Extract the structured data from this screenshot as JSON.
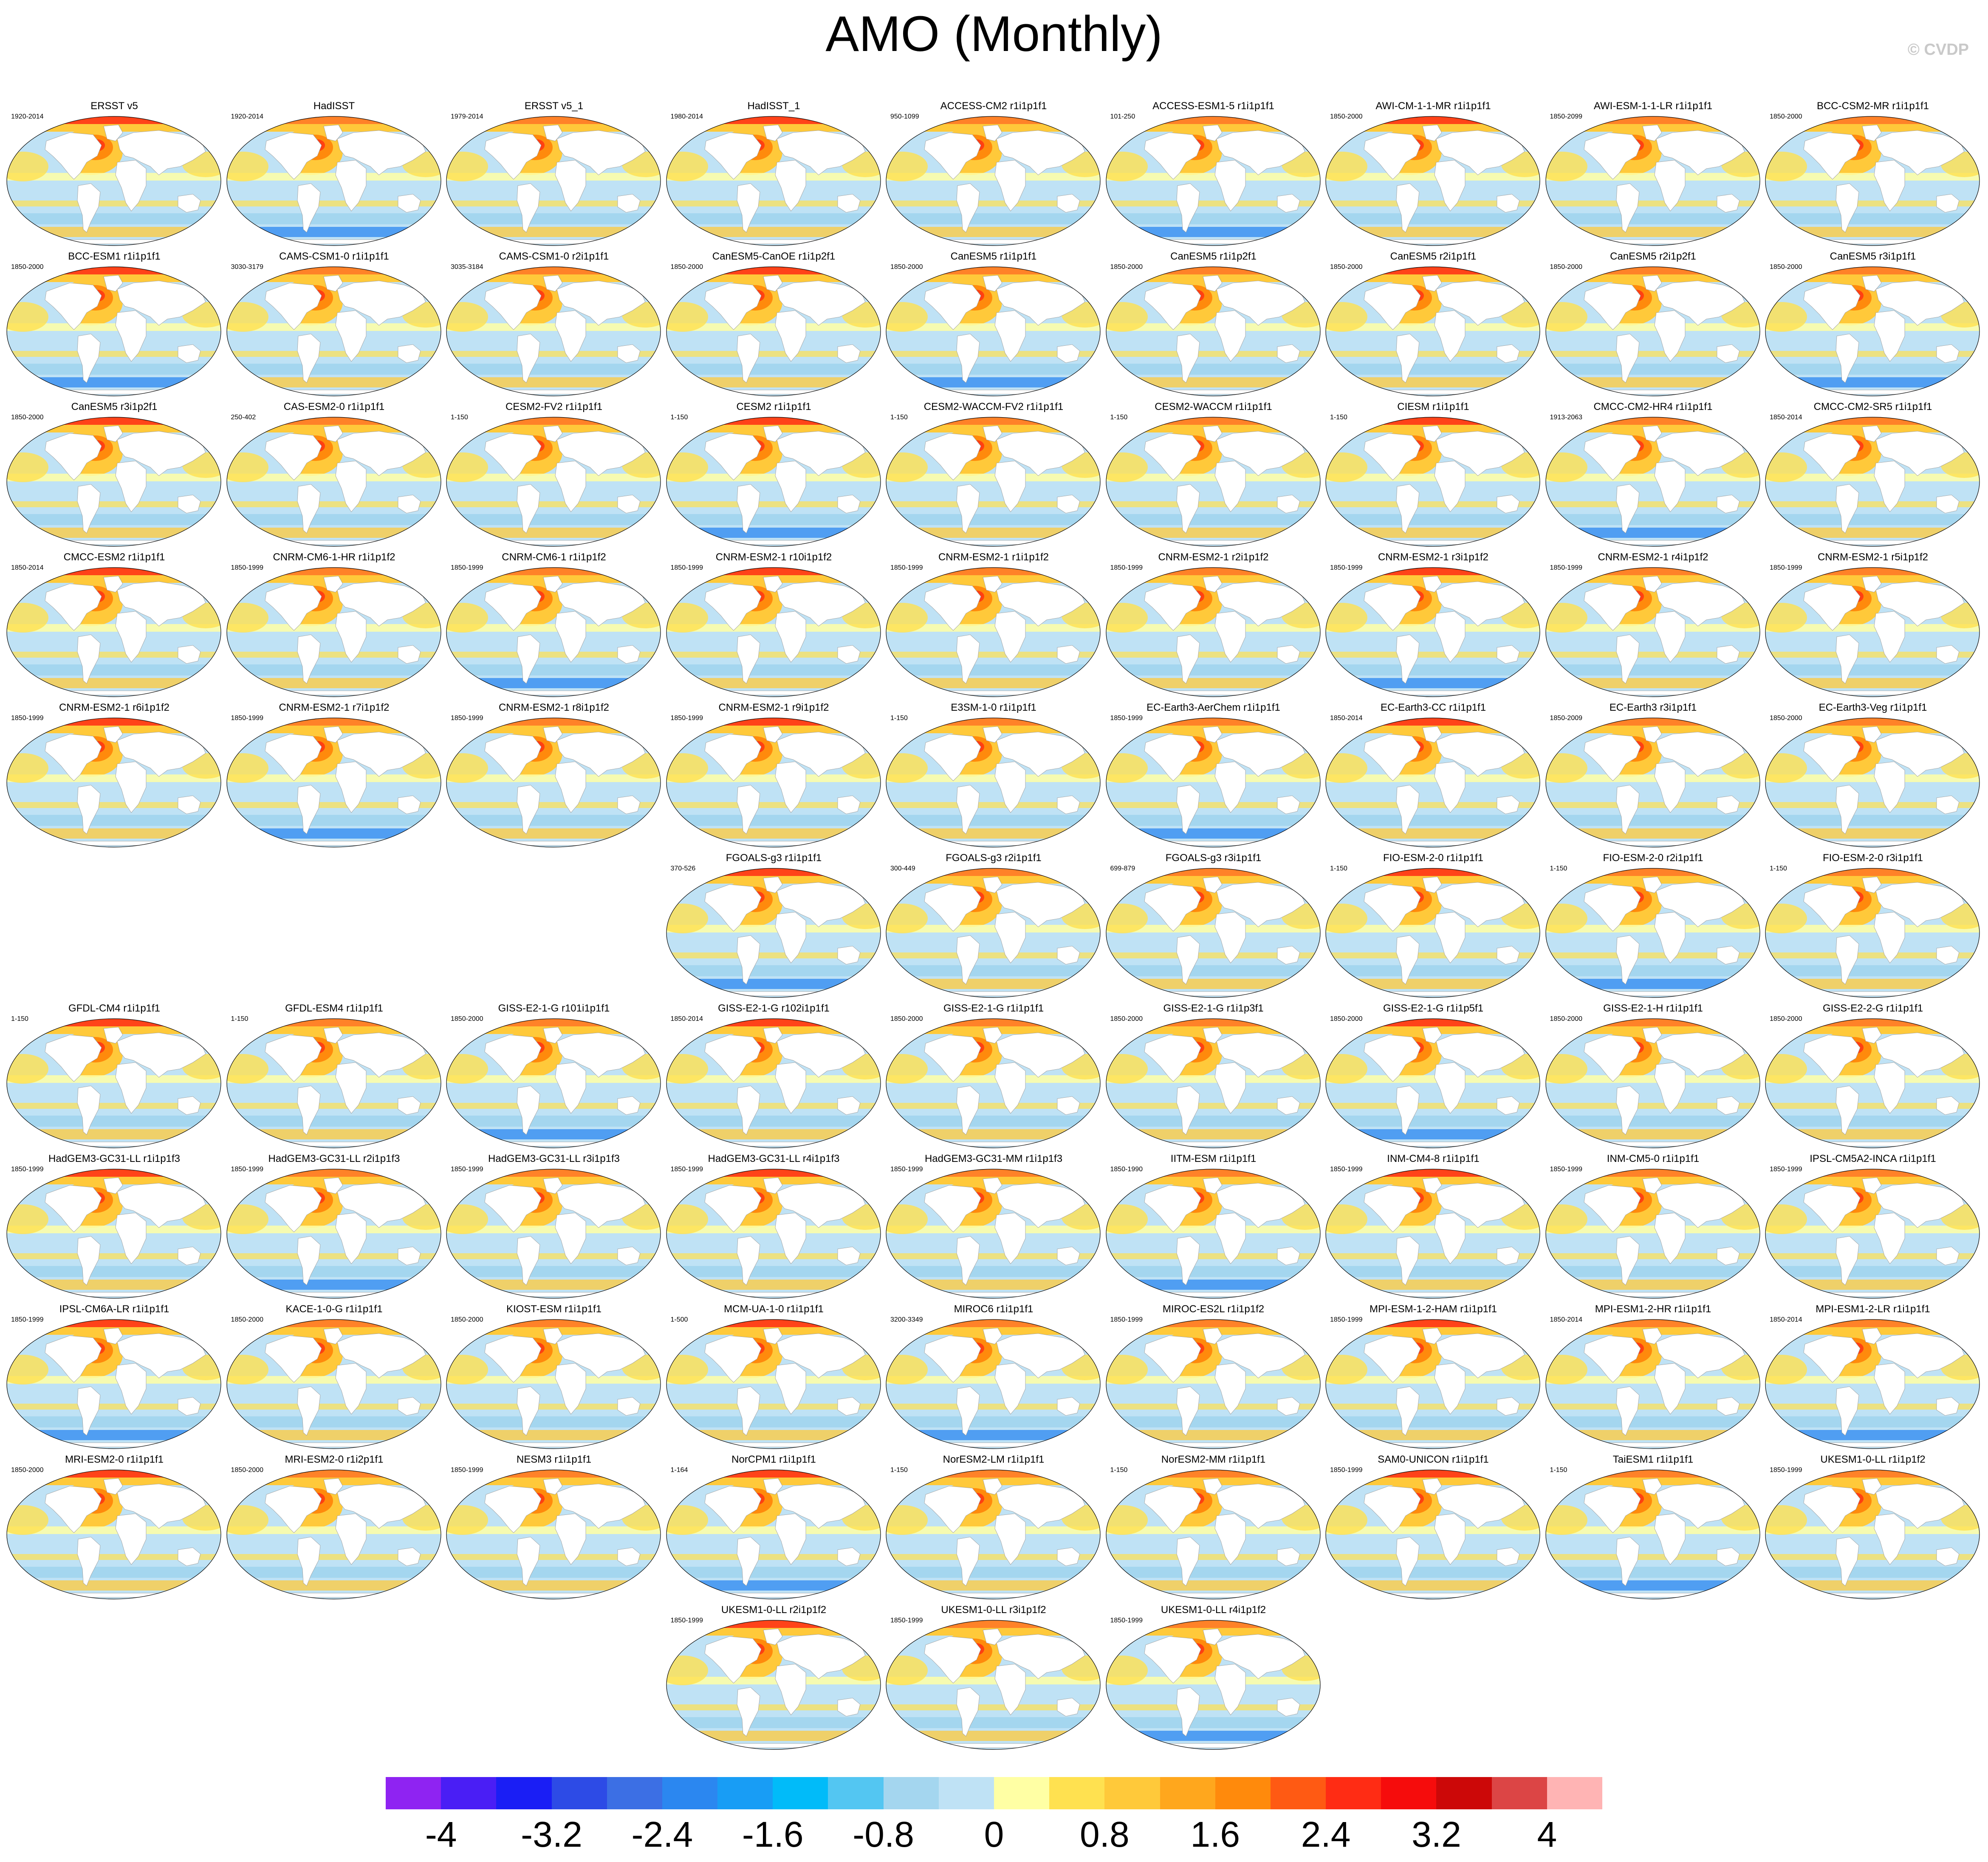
{
  "title": "AMO (Monthly)",
  "watermark": "© CVDP",
  "colorbar": {
    "colors": [
      "#8f23f2",
      "#4a1ef5",
      "#1a1ef5",
      "#2d4be6",
      "#3c6fe4",
      "#2b87f0",
      "#189df5",
      "#01bbf9",
      "#53c6f2",
      "#a4d6ef",
      "#bfe2f5",
      "#ffffa4",
      "#ffe150",
      "#ffc93a",
      "#ffa71d",
      "#ff8a0c",
      "#ff5a13",
      "#ff2c14",
      "#f60c0c",
      "#cc0808",
      "#dc4545",
      "#ffb4b4"
    ],
    "labels": [
      "-4",
      "-3.2",
      "-2.4",
      "-1.6",
      "-0.8",
      "0",
      "0.8",
      "1.6",
      "2.4",
      "3.2",
      "4"
    ]
  },
  "panels": [
    {
      "title": "ERSST v5",
      "years": "1920-2014",
      "col": 0,
      "row": 0
    },
    {
      "title": "HadISST",
      "years": "1920-2014",
      "col": 1,
      "row": 0
    },
    {
      "title": "ERSST v5_1",
      "years": "1979-2014",
      "col": 2,
      "row": 0
    },
    {
      "title": "HadISST_1",
      "years": "1980-2014",
      "col": 3,
      "row": 0
    },
    {
      "title": "ACCESS-CM2 r1i1p1f1",
      "years": "950-1099",
      "col": 4,
      "row": 0
    },
    {
      "title": "ACCESS-ESM1-5 r1i1p1f1",
      "years": "101-250",
      "col": 5,
      "row": 0
    },
    {
      "title": "AWI-CM-1-1-MR r1i1p1f1",
      "years": "1850-2000",
      "col": 6,
      "row": 0
    },
    {
      "title": "AWI-ESM-1-1-LR r1i1p1f1",
      "years": "1850-2099",
      "col": 7,
      "row": 0
    },
    {
      "title": "BCC-CSM2-MR r1i1p1f1",
      "years": "1850-2000",
      "col": 8,
      "row": 0
    },
    {
      "title": "BCC-ESM1 r1i1p1f1",
      "years": "1850-2000",
      "col": 0,
      "row": 1
    },
    {
      "title": "CAMS-CSM1-0 r1i1p1f1",
      "years": "3030-3179",
      "col": 1,
      "row": 1
    },
    {
      "title": "CAMS-CSM1-0 r2i1p1f1",
      "years": "3035-3184",
      "col": 2,
      "row": 1
    },
    {
      "title": "CanESM5-CanOE r1i1p2f1",
      "years": "1850-2000",
      "col": 3,
      "row": 1
    },
    {
      "title": "CanESM5 r1i1p1f1",
      "years": "1850-2000",
      "col": 4,
      "row": 1
    },
    {
      "title": "CanESM5 r1i1p2f1",
      "years": "1850-2000",
      "col": 5,
      "row": 1
    },
    {
      "title": "CanESM5 r2i1p1f1",
      "years": "1850-2000",
      "col": 6,
      "row": 1
    },
    {
      "title": "CanESM5 r2i1p2f1",
      "years": "1850-2000",
      "col": 7,
      "row": 1
    },
    {
      "title": "CanESM5 r3i1p1f1",
      "years": "1850-2000",
      "col": 8,
      "row": 1
    },
    {
      "title": "CanESM5 r3i1p2f1",
      "years": "1850-2000",
      "col": 0,
      "row": 2
    },
    {
      "title": "CAS-ESM2-0 r1i1p1f1",
      "years": "250-402",
      "col": 1,
      "row": 2
    },
    {
      "title": "CESM2-FV2 r1i1p1f1",
      "years": "1-150",
      "col": 2,
      "row": 2
    },
    {
      "title": "CESM2 r1i1p1f1",
      "years": "1-150",
      "col": 3,
      "row": 2
    },
    {
      "title": "CESM2-WACCM-FV2 r1i1p1f1",
      "years": "1-150",
      "col": 4,
      "row": 2
    },
    {
      "title": "CESM2-WACCM r1i1p1f1",
      "years": "1-150",
      "col": 5,
      "row": 2
    },
    {
      "title": "CIESM r1i1p1f1",
      "years": "1-150",
      "col": 6,
      "row": 2
    },
    {
      "title": "CMCC-CM2-HR4 r1i1p1f1",
      "years": "1913-2063",
      "col": 7,
      "row": 2
    },
    {
      "title": "CMCC-CM2-SR5 r1i1p1f1",
      "years": "1850-2014",
      "col": 8,
      "row": 2
    },
    {
      "title": "CMCC-ESM2 r1i1p1f1",
      "years": "1850-2014",
      "col": 0,
      "row": 3
    },
    {
      "title": "CNRM-CM6-1-HR r1i1p1f2",
      "years": "1850-1999",
      "col": 1,
      "row": 3
    },
    {
      "title": "CNRM-CM6-1 r1i1p1f2",
      "years": "1850-1999",
      "col": 2,
      "row": 3
    },
    {
      "title": "CNRM-ESM2-1 r10i1p1f2",
      "years": "1850-1999",
      "col": 3,
      "row": 3
    },
    {
      "title": "CNRM-ESM2-1 r1i1p1f2",
      "years": "1850-1999",
      "col": 4,
      "row": 3
    },
    {
      "title": "CNRM-ESM2-1 r2i1p1f2",
      "years": "1850-1999",
      "col": 5,
      "row": 3
    },
    {
      "title": "CNRM-ESM2-1 r3i1p1f2",
      "years": "1850-1999",
      "col": 6,
      "row": 3
    },
    {
      "title": "CNRM-ESM2-1 r4i1p1f2",
      "years": "1850-1999",
      "col": 7,
      "row": 3
    },
    {
      "title": "CNRM-ESM2-1 r5i1p1f2",
      "years": "1850-1999",
      "col": 8,
      "row": 3
    },
    {
      "title": "CNRM-ESM2-1 r6i1p1f2",
      "years": "1850-1999",
      "col": 0,
      "row": 4
    },
    {
      "title": "CNRM-ESM2-1 r7i1p1f2",
      "years": "1850-1999",
      "col": 1,
      "row": 4
    },
    {
      "title": "CNRM-ESM2-1 r8i1p1f2",
      "years": "1850-1999",
      "col": 2,
      "row": 4
    },
    {
      "title": "CNRM-ESM2-1 r9i1p1f2",
      "years": "1850-1999",
      "col": 3,
      "row": 4
    },
    {
      "title": "E3SM-1-0 r1i1p1f1",
      "years": "1-150",
      "col": 4,
      "row": 4
    },
    {
      "title": "EC-Earth3-AerChem r1i1p1f1",
      "years": "1850-1999",
      "col": 5,
      "row": 4
    },
    {
      "title": "EC-Earth3-CC r1i1p1f1",
      "years": "1850-2014",
      "col": 6,
      "row": 4
    },
    {
      "title": "EC-Earth3 r3i1p1f1",
      "years": "1850-2009",
      "col": 7,
      "row": 4
    },
    {
      "title": "EC-Earth3-Veg r1i1p1f1",
      "years": "1850-2000",
      "col": 8,
      "row": 4
    },
    {
      "title": "FGOALS-g3 r1i1p1f1",
      "years": "370-526",
      "col": 3,
      "row": 5
    },
    {
      "title": "FGOALS-g3 r2i1p1f1",
      "years": "300-449",
      "col": 4,
      "row": 5
    },
    {
      "title": "FGOALS-g3 r3i1p1f1",
      "years": "699-879",
      "col": 5,
      "row": 5
    },
    {
      "title": "FIO-ESM-2-0 r1i1p1f1",
      "years": "1-150",
      "col": 6,
      "row": 5
    },
    {
      "title": "FIO-ESM-2-0 r2i1p1f1",
      "years": "1-150",
      "col": 7,
      "row": 5
    },
    {
      "title": "FIO-ESM-2-0 r3i1p1f1",
      "years": "1-150",
      "col": 8,
      "row": 5
    },
    {
      "title": "GFDL-CM4 r1i1p1f1",
      "years": "1-150",
      "col": 0,
      "row": 6
    },
    {
      "title": "GFDL-ESM4 r1i1p1f1",
      "years": "1-150",
      "col": 1,
      "row": 6
    },
    {
      "title": "GISS-E2-1-G r101i1p1f1",
      "years": "1850-2000",
      "col": 2,
      "row": 6
    },
    {
      "title": "GISS-E2-1-G r102i1p1f1",
      "years": "1850-2014",
      "col": 3,
      "row": 6
    },
    {
      "title": "GISS-E2-1-G r1i1p1f1",
      "years": "1850-2000",
      "col": 4,
      "row": 6
    },
    {
      "title": "GISS-E2-1-G r1i1p3f1",
      "years": "1850-2000",
      "col": 5,
      "row": 6
    },
    {
      "title": "GISS-E2-1-G r1i1p5f1",
      "years": "1850-2000",
      "col": 6,
      "row": 6
    },
    {
      "title": "GISS-E2-1-H r1i1p1f1",
      "years": "1850-2000",
      "col": 7,
      "row": 6
    },
    {
      "title": "GISS-E2-2-G r1i1p1f1",
      "years": "1850-2000",
      "col": 8,
      "row": 6
    },
    {
      "title": "HadGEM3-GC31-LL r1i1p1f3",
      "years": "1850-1999",
      "col": 0,
      "row": 7
    },
    {
      "title": "HadGEM3-GC31-LL r2i1p1f3",
      "years": "1850-1999",
      "col": 1,
      "row": 7
    },
    {
      "title": "HadGEM3-GC31-LL r3i1p1f3",
      "years": "1850-1999",
      "col": 2,
      "row": 7
    },
    {
      "title": "HadGEM3-GC31-LL r4i1p1f3",
      "years": "1850-1999",
      "col": 3,
      "row": 7
    },
    {
      "title": "HadGEM3-GC31-MM r1i1p1f3",
      "years": "1850-1999",
      "col": 4,
      "row": 7
    },
    {
      "title": "IITM-ESM r1i1p1f1",
      "years": "1850-1990",
      "col": 5,
      "row": 7
    },
    {
      "title": "INM-CM4-8 r1i1p1f1",
      "years": "1850-1999",
      "col": 6,
      "row": 7
    },
    {
      "title": "INM-CM5-0 r1i1p1f1",
      "years": "1850-1999",
      "col": 7,
      "row": 7
    },
    {
      "title": "IPSL-CM5A2-INCA r1i1p1f1",
      "years": "1850-1999",
      "col": 8,
      "row": 7
    },
    {
      "title": "IPSL-CM6A-LR r1i1p1f1",
      "years": "1850-1999",
      "col": 0,
      "row": 8
    },
    {
      "title": "KACE-1-0-G r1i1p1f1",
      "years": "1850-2000",
      "col": 1,
      "row": 8
    },
    {
      "title": "KIOST-ESM r1i1p1f1",
      "years": "1850-2000",
      "col": 2,
      "row": 8
    },
    {
      "title": "MCM-UA-1-0 r1i1p1f1",
      "years": "1-500",
      "col": 3,
      "row": 8
    },
    {
      "title": "MIROC6 r1i1p1f1",
      "years": "3200-3349",
      "col": 4,
      "row": 8
    },
    {
      "title": "MIROC-ES2L r1i1p1f2",
      "years": "1850-1999",
      "col": 5,
      "row": 8
    },
    {
      "title": "MPI-ESM-1-2-HAM r1i1p1f1",
      "years": "1850-1999",
      "col": 6,
      "row": 8
    },
    {
      "title": "MPI-ESM1-2-HR r1i1p1f1",
      "years": "1850-2014",
      "col": 7,
      "row": 8
    },
    {
      "title": "MPI-ESM1-2-LR r1i1p1f1",
      "years": "1850-2014",
      "col": 8,
      "row": 8
    },
    {
      "title": "MRI-ESM2-0 r1i1p1f1",
      "years": "1850-2000",
      "col": 0,
      "row": 9
    },
    {
      "title": "MRI-ESM2-0 r1i2p1f1",
      "years": "1850-2000",
      "col": 1,
      "row": 9
    },
    {
      "title": "NESM3 r1i1p1f1",
      "years": "1850-1999",
      "col": 2,
      "row": 9
    },
    {
      "title": "NorCPM1 r1i1p1f1",
      "years": "1-164",
      "col": 3,
      "row": 9
    },
    {
      "title": "NorESM2-LM r1i1p1f1",
      "years": "1-150",
      "col": 4,
      "row": 9
    },
    {
      "title": "NorESM2-MM r1i1p1f1",
      "years": "1-150",
      "col": 5,
      "row": 9
    },
    {
      "title": "SAM0-UNICON r1i1p1f1",
      "years": "1850-1999",
      "col": 6,
      "row": 9
    },
    {
      "title": "TaiESM1 r1i1p1f1",
      "years": "1-150",
      "col": 7,
      "row": 9
    },
    {
      "title": "UKESM1-0-LL r1i1p1f2",
      "years": "1850-1999",
      "col": 8,
      "row": 9
    },
    {
      "title": "UKESM1-0-LL r2i1p1f2",
      "years": "1850-1999",
      "col": 3,
      "row": 10
    },
    {
      "title": "UKESM1-0-LL r3i1p1f2",
      "years": "1850-1999",
      "col": 4,
      "row": 10
    },
    {
      "title": "UKESM1-0-LL r4i1p1f2",
      "years": "1850-1999",
      "col": 5,
      "row": 10
    }
  ]
}
